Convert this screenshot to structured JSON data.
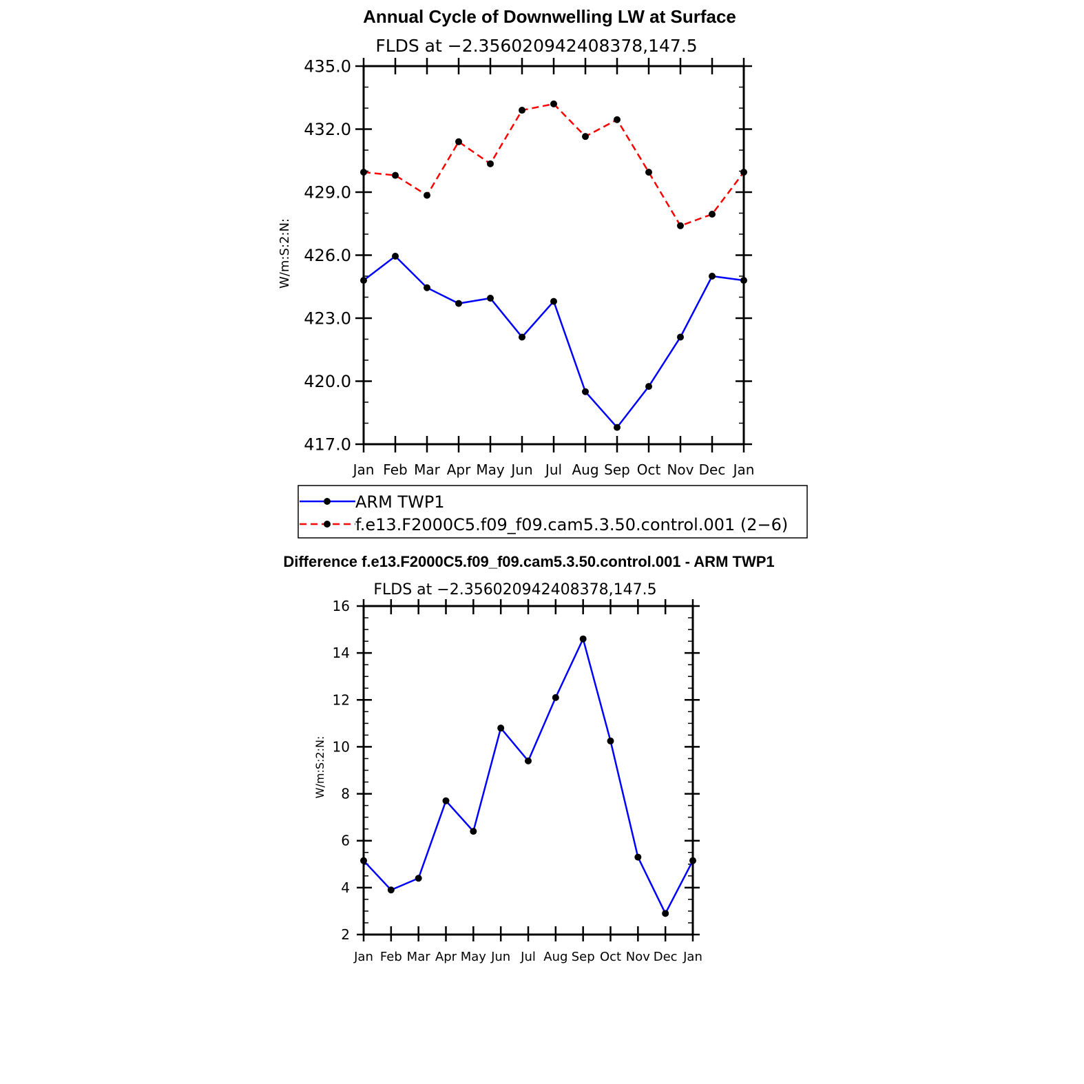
{
  "chart_data": [
    {
      "type": "line",
      "title": "Annual Cycle of Downwelling LW at Surface",
      "subtitle": "FLDS at −2.356020942408378,147.5",
      "ylabel": "W/m:S:2:N:",
      "xlabel": "",
      "categories": [
        "Jan",
        "Feb",
        "Mar",
        "Apr",
        "May",
        "Jun",
        "Jul",
        "Aug",
        "Sep",
        "Oct",
        "Nov",
        "Dec",
        "Jan"
      ],
      "ylim": [
        417.0,
        435.0
      ],
      "yticks": [
        "417.0",
        "420.0",
        "423.0",
        "426.0",
        "429.0",
        "432.0",
        "435.0"
      ],
      "grid": false,
      "legend_position": "bottom",
      "series": [
        {
          "name": "ARM TWP1",
          "color": "#0000ff",
          "dash": "solid",
          "values": [
            424.8,
            425.95,
            424.45,
            423.7,
            423.95,
            422.1,
            423.8,
            419.5,
            417.8,
            419.75,
            422.1,
            425.0,
            424.8
          ]
        },
        {
          "name": "f.e13.F2000C5.f09_f09.cam5.3.50.control.001 (2−6)",
          "color": "#ff0000",
          "dash": "dashed",
          "values": [
            429.95,
            429.8,
            428.85,
            431.4,
            430.35,
            432.9,
            433.2,
            431.65,
            432.45,
            429.95,
            427.4,
            427.95,
            429.95
          ]
        }
      ]
    },
    {
      "type": "line",
      "title": "Difference f.e13.F2000C5.f09_f09.cam5.3.50.control.001 - ARM TWP1",
      "subtitle": "FLDS at −2.356020942408378,147.5",
      "ylabel": "W/m:S:2:N:",
      "xlabel": "",
      "categories": [
        "Jan",
        "Feb",
        "Mar",
        "Apr",
        "May",
        "Jun",
        "Jul",
        "Aug",
        "Sep",
        "Oct",
        "Nov",
        "Dec",
        "Jan"
      ],
      "ylim": [
        2,
        16
      ],
      "yticks": [
        "2",
        "4",
        "6",
        "8",
        "10",
        "12",
        "14",
        "16"
      ],
      "grid": false,
      "series": [
        {
          "color": "#0000ff",
          "dash": "solid",
          "values": [
            5.15,
            3.9,
            4.4,
            7.7,
            6.4,
            10.8,
            9.4,
            12.1,
            14.6,
            10.25,
            5.3,
            2.9,
            5.15
          ]
        }
      ]
    }
  ]
}
